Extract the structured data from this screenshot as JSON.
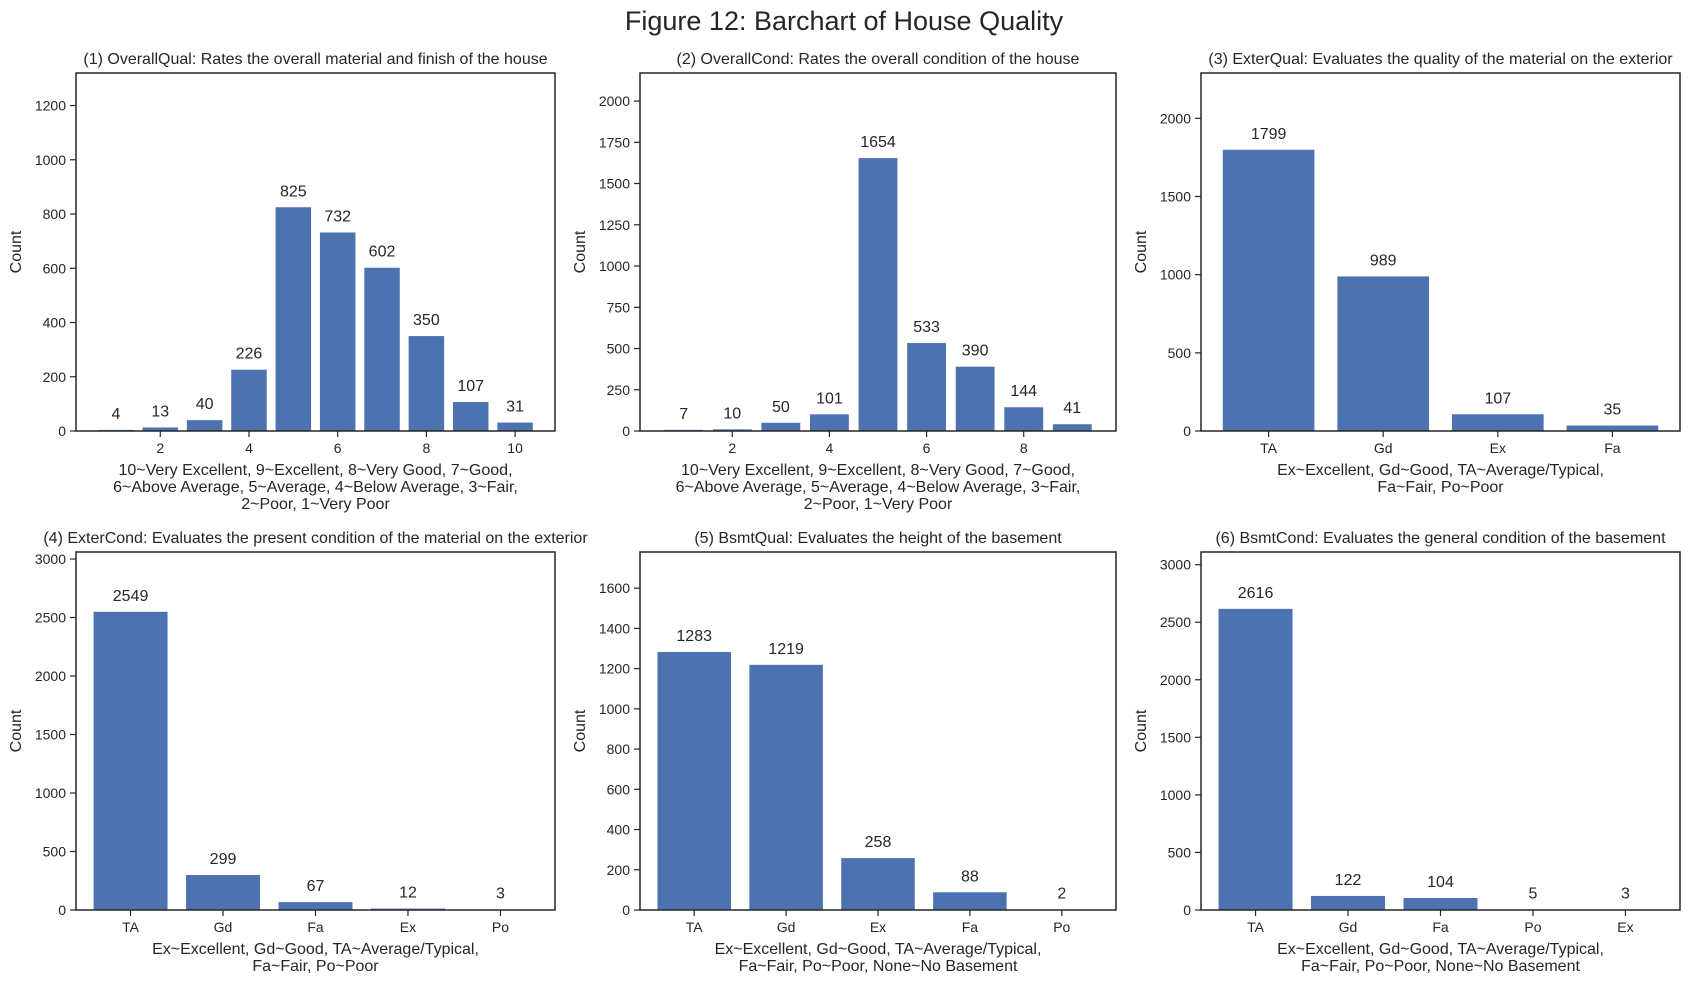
{
  "figure_title": "Figure 12: Barchart of House Quality",
  "style": {
    "bar_color": "#4c72b0",
    "axis_color": "#262626",
    "text_color": "#262626",
    "background": "#ffffff"
  },
  "chart_data": [
    {
      "type": "bar",
      "title": "(1) OverallQual: Rates the overall material and finish of the house",
      "xlabel": [
        "10~Very Excellent, 9~Excellent, 8~Very Good, 7~Good,",
        "6~Above Average, 5~Average, 4~Below Average, 3~Fair,",
        "2~Poor, 1~Very Poor"
      ],
      "ylabel": "Count",
      "x_numeric": true,
      "categories": [
        1,
        2,
        3,
        4,
        5,
        6,
        7,
        8,
        9,
        10
      ],
      "values": [
        4,
        13,
        40,
        226,
        825,
        732,
        602,
        350,
        107,
        31
      ],
      "xticks": [
        2,
        4,
        6,
        8,
        10
      ],
      "xlim": [
        0.1,
        10.9
      ],
      "ylim": [
        0,
        1320
      ],
      "yticks": [
        0,
        200,
        400,
        600,
        800,
        1000,
        1200
      ]
    },
    {
      "type": "bar",
      "title": "(2) OverallCond: Rates the overall condition of the house",
      "xlabel": [
        "10~Very Excellent, 9~Excellent, 8~Very Good, 7~Good,",
        "6~Above Average, 5~Average, 4~Below Average, 3~Fair,",
        "2~Poor, 1~Very Poor"
      ],
      "ylabel": "Count",
      "x_numeric": true,
      "categories": [
        1,
        2,
        3,
        4,
        5,
        6,
        7,
        8,
        9
      ],
      "values": [
        7,
        10,
        50,
        101,
        1654,
        533,
        390,
        144,
        41
      ],
      "xticks": [
        2,
        4,
        6,
        8
      ],
      "xlim": [
        0.1,
        9.9
      ],
      "ylim": [
        0,
        2170
      ],
      "yticks": [
        0,
        250,
        500,
        750,
        1000,
        1250,
        1500,
        1750,
        2000
      ]
    },
    {
      "type": "bar",
      "title": "(3) ExterQual: Evaluates the quality of the material on the exterior",
      "xlabel": [
        "Ex~Excellent, Gd~Good, TA~Average/Typical,",
        "Fa~Fair, Po~Poor"
      ],
      "ylabel": "Count",
      "x_numeric": false,
      "categories": [
        "TA",
        "Gd",
        "Ex",
        "Fa"
      ],
      "values": [
        1799,
        989,
        107,
        35
      ],
      "ylim": [
        0,
        2290
      ],
      "yticks": [
        0,
        500,
        1000,
        1500,
        2000
      ]
    },
    {
      "type": "bar",
      "title": "(4) ExterCond: Evaluates the present condition of the material on the exterior",
      "xlabel": [
        "Ex~Excellent, Gd~Good, TA~Average/Typical,",
        "Fa~Fair, Po~Poor"
      ],
      "ylabel": "Count",
      "x_numeric": false,
      "categories": [
        "TA",
        "Gd",
        "Fa",
        "Ex",
        "Po"
      ],
      "values": [
        2549,
        299,
        67,
        12,
        3
      ],
      "ylim": [
        0,
        3060
      ],
      "yticks": [
        0,
        500,
        1000,
        1500,
        2000,
        2500,
        3000
      ]
    },
    {
      "type": "bar",
      "title": "(5) BsmtQual: Evaluates the height of the basement",
      "xlabel": [
        "Ex~Excellent, Gd~Good, TA~Average/Typical,",
        "Fa~Fair, Po~Poor, None~No Basement"
      ],
      "ylabel": "Count",
      "x_numeric": false,
      "categories": [
        "TA",
        "Gd",
        "Ex",
        "Fa",
        "Po"
      ],
      "values": [
        1283,
        1219,
        258,
        88,
        2
      ],
      "ylim": [
        0,
        1780
      ],
      "yticks": [
        0,
        200,
        400,
        600,
        800,
        1000,
        1200,
        1400,
        1600
      ]
    },
    {
      "type": "bar",
      "title": "(6) BsmtCond: Evaluates the general condition of the basement",
      "xlabel": [
        "Ex~Excellent, Gd~Good, TA~Average/Typical,",
        "Fa~Fair, Po~Poor, None~No Basement"
      ],
      "ylabel": "Count",
      "x_numeric": false,
      "categories": [
        "TA",
        "Gd",
        "Fa",
        "Po",
        "Ex"
      ],
      "values": [
        2616,
        122,
        104,
        5,
        3
      ],
      "ylim": [
        0,
        3110
      ],
      "yticks": [
        0,
        500,
        1000,
        1500,
        2000,
        2500,
        3000
      ]
    }
  ]
}
